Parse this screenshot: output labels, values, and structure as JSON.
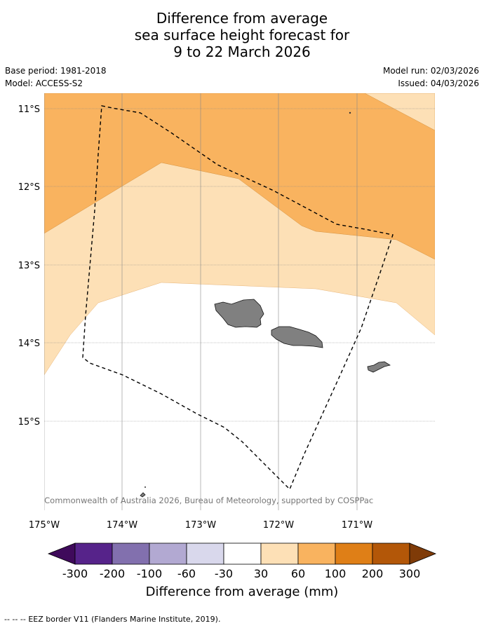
{
  "title": {
    "line1": "Difference from average",
    "line2": "sea surface height forecast for",
    "line3": "9 to 22 March 2026"
  },
  "meta": {
    "base_period": "Base period: 1981-2018",
    "model": "Model: ACCESS-S2",
    "model_run": "Model run: 02/03/2026",
    "issued": "Issued: 04/03/2026"
  },
  "map": {
    "lat_labels": [
      "11°S",
      "12°S",
      "13°S",
      "14°S",
      "15°S"
    ],
    "lon_labels": [
      "175°W",
      "174°W",
      "173°W",
      "172°W",
      "171°W"
    ],
    "copyright": "© Commonwealth of Australia 2026, Bureau of Meteorology, supported by COSPPac"
  },
  "colorbar": {
    "ticks": [
      "-300",
      "-200",
      "-100",
      "-60",
      "-30",
      "30",
      "60",
      "100",
      "200",
      "300"
    ],
    "colors": [
      "#3f0a5b",
      "#56238a",
      "#8270ae",
      "#b2a9d2",
      "#d9d8ec",
      "#ffffff",
      "#fde0b6",
      "#f9b35f",
      "#df7f17",
      "#b35708",
      "#7f3b08"
    ],
    "label": "Difference from average (mm)"
  },
  "legend": {
    "eez_line": "-- -- --",
    "eez_label": "EEZ border V11 (Flanders Marine Institute, 2019)."
  }
}
